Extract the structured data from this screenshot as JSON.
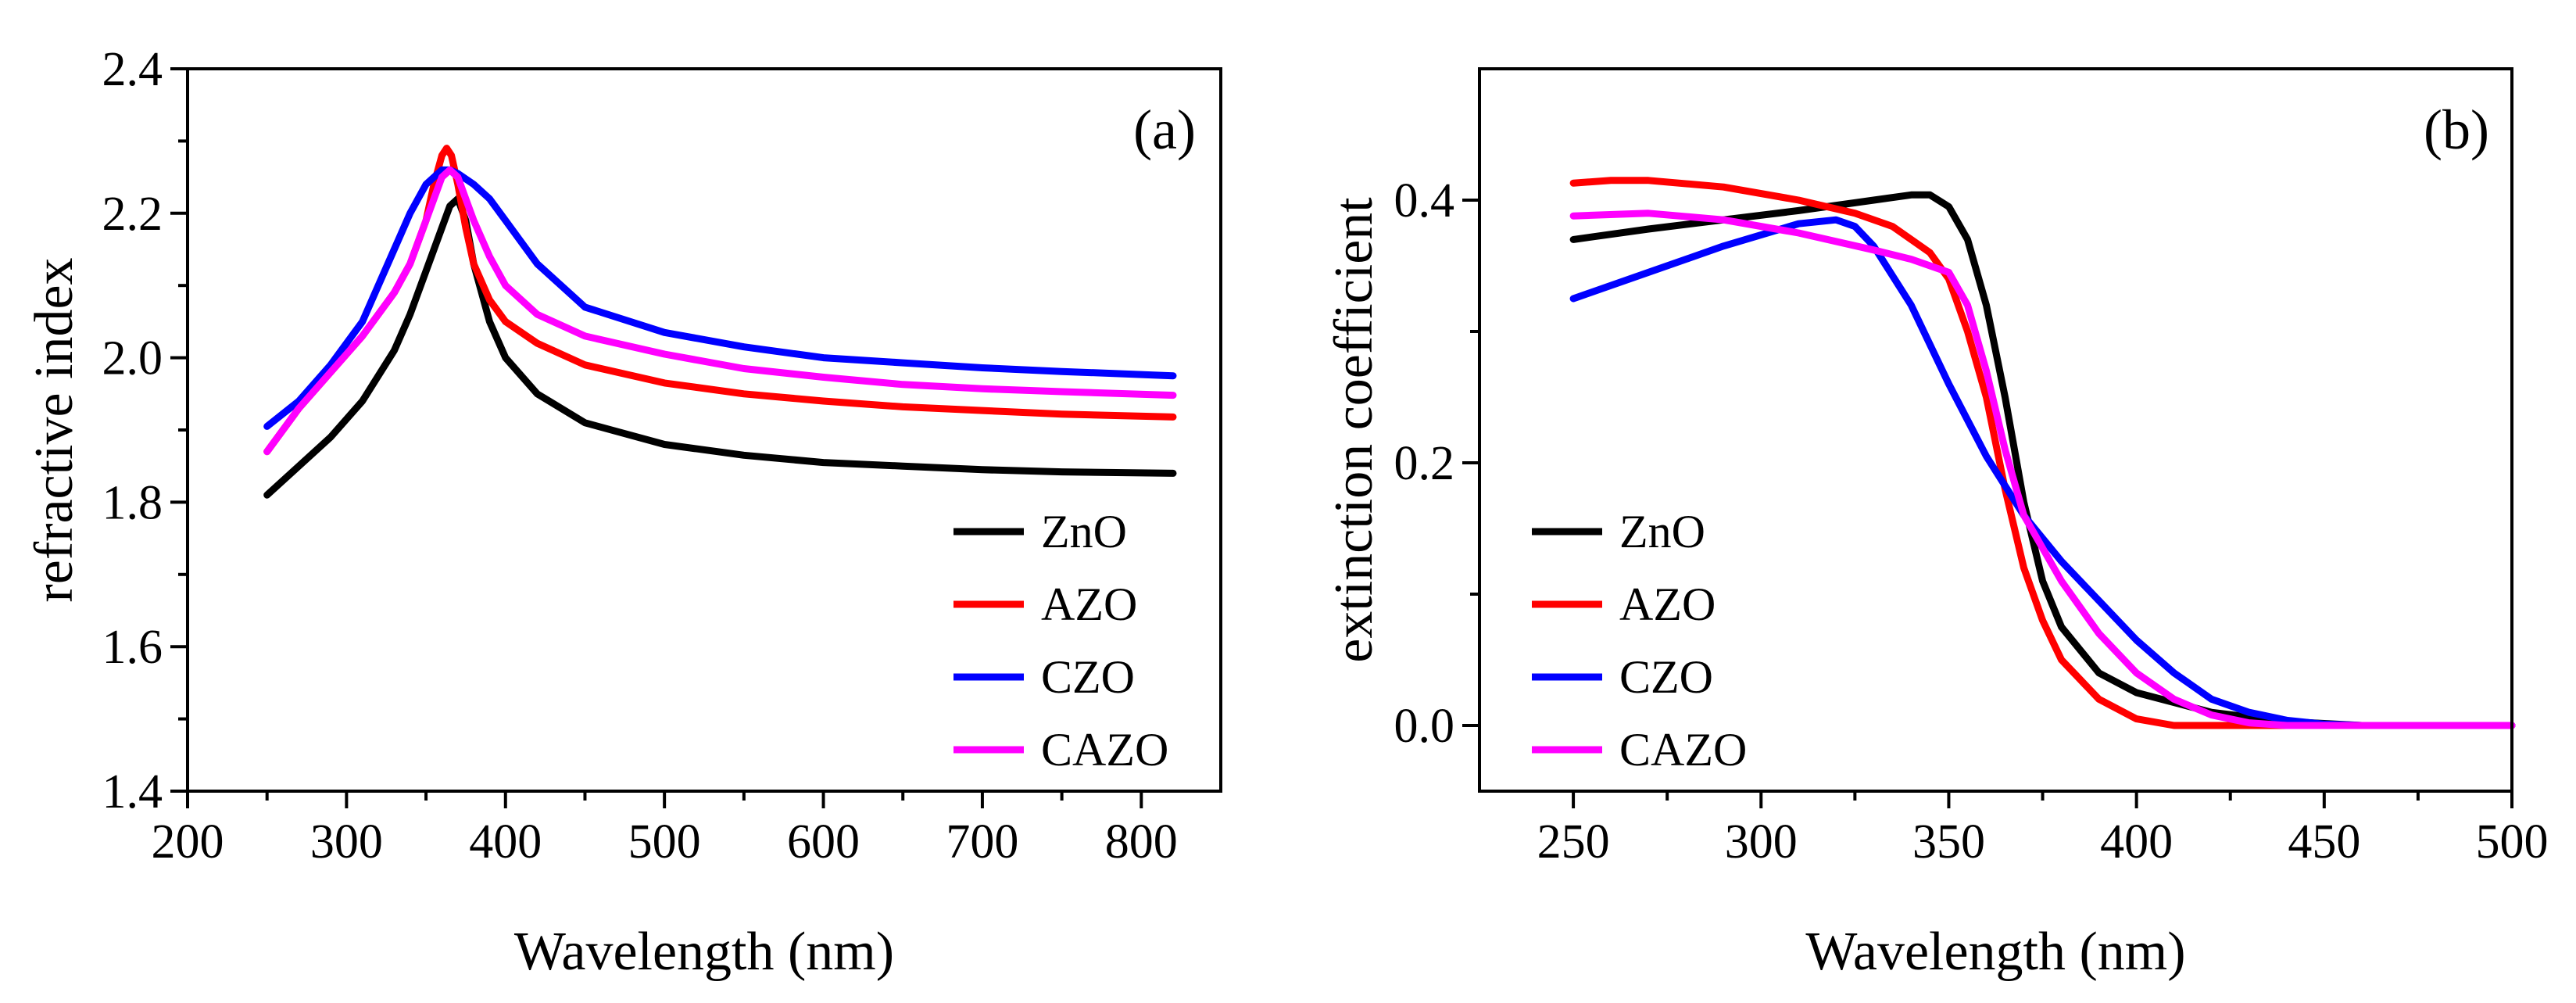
{
  "colors": {
    "ZnO": "#000000",
    "AZO": "#ff0000",
    "CZO": "#0000ff",
    "CAZO": "#ff00ff"
  },
  "chart_data": [
    {
      "type": "line",
      "panel_label": "(a)",
      "xlabel": "Wavelength (nm)",
      "ylabel": "refractive index",
      "xlim": [
        200,
        850
      ],
      "ylim": [
        1.4,
        2.4
      ],
      "xticks": [
        200,
        300,
        400,
        500,
        600,
        700,
        800
      ],
      "yticks": [
        1.4,
        1.6,
        1.8,
        2.0,
        2.2,
        2.4
      ],
      "xtick_labels": [
        "200",
        "300",
        "400",
        "500",
        "600",
        "700",
        "800"
      ],
      "ytick_labels": [
        "1.4",
        "1.6",
        "1.8",
        "2.0",
        "2.2",
        "2.4"
      ],
      "legend": [
        "ZnO",
        "AZO",
        "CZO",
        "CAZO"
      ],
      "legend_position": "bottom-right",
      "series": [
        {
          "name": "ZnO",
          "x": [
            250,
            270,
            290,
            310,
            330,
            340,
            350,
            360,
            365,
            370,
            375,
            380,
            390,
            400,
            420,
            450,
            500,
            550,
            600,
            650,
            700,
            750,
            820
          ],
          "y": [
            1.81,
            1.85,
            1.89,
            1.94,
            2.01,
            2.06,
            2.12,
            2.18,
            2.21,
            2.22,
            2.19,
            2.13,
            2.05,
            2.0,
            1.95,
            1.91,
            1.88,
            1.865,
            1.855,
            1.85,
            1.845,
            1.842,
            1.84
          ]
        },
        {
          "name": "AZO",
          "x": [
            250,
            270,
            290,
            310,
            330,
            340,
            350,
            355,
            360,
            363,
            366,
            370,
            375,
            380,
            390,
            400,
            420,
            450,
            500,
            550,
            600,
            650,
            700,
            750,
            820
          ],
          "y": [
            1.87,
            1.93,
            1.98,
            2.03,
            2.09,
            2.13,
            2.19,
            2.24,
            2.28,
            2.29,
            2.28,
            2.24,
            2.18,
            2.13,
            2.08,
            2.05,
            2.02,
            1.99,
            1.965,
            1.95,
            1.94,
            1.932,
            1.927,
            1.922,
            1.918
          ]
        },
        {
          "name": "CZO",
          "x": [
            250,
            270,
            290,
            310,
            330,
            340,
            350,
            360,
            365,
            370,
            380,
            390,
            400,
            420,
            450,
            500,
            550,
            600,
            650,
            700,
            750,
            820
          ],
          "y": [
            1.905,
            1.94,
            1.99,
            2.05,
            2.15,
            2.2,
            2.24,
            2.26,
            2.26,
            2.255,
            2.24,
            2.22,
            2.19,
            2.13,
            2.07,
            2.035,
            2.015,
            2.0,
            1.993,
            1.986,
            1.981,
            1.975
          ]
        },
        {
          "name": "CAZO",
          "x": [
            250,
            270,
            290,
            310,
            330,
            340,
            350,
            360,
            365,
            370,
            375,
            380,
            390,
            400,
            420,
            450,
            500,
            550,
            600,
            650,
            700,
            750,
            820
          ],
          "y": [
            1.87,
            1.93,
            1.98,
            2.03,
            2.09,
            2.13,
            2.19,
            2.25,
            2.26,
            2.25,
            2.22,
            2.19,
            2.14,
            2.1,
            2.06,
            2.03,
            2.005,
            1.985,
            1.973,
            1.963,
            1.957,
            1.953,
            1.948
          ]
        }
      ]
    },
    {
      "type": "line",
      "panel_label": "(b)",
      "xlabel": "Wavelength (nm)",
      "ylabel": "extinction coefficient",
      "xlim": [
        225,
        500
      ],
      "ylim": [
        -0.05,
        0.5
      ],
      "xticks": [
        250,
        300,
        350,
        400,
        450,
        500
      ],
      "yticks": [
        0.0,
        0.2,
        0.4
      ],
      "xtick_labels": [
        "250",
        "300",
        "350",
        "400",
        "450",
        "500"
      ],
      "ytick_labels": [
        "0.0",
        "0.2",
        "0.4"
      ],
      "legend": [
        "ZnO",
        "AZO",
        "CZO",
        "CAZO"
      ],
      "legend_position": "bottom-left",
      "series": [
        {
          "name": "ZnO",
          "x": [
            250,
            270,
            290,
            310,
            330,
            340,
            345,
            350,
            355,
            360,
            365,
            370,
            375,
            380,
            390,
            400,
            420,
            440,
            460,
            500
          ],
          "y": [
            0.37,
            0.378,
            0.385,
            0.392,
            0.4,
            0.404,
            0.404,
            0.395,
            0.37,
            0.32,
            0.25,
            0.17,
            0.11,
            0.075,
            0.04,
            0.025,
            0.01,
            0.003,
            0.0,
            0.0
          ]
        },
        {
          "name": "AZO",
          "x": [
            250,
            260,
            270,
            290,
            310,
            325,
            335,
            345,
            350,
            355,
            360,
            365,
            370,
            375,
            380,
            390,
            400,
            410,
            500
          ],
          "y": [
            0.413,
            0.415,
            0.415,
            0.41,
            0.4,
            0.39,
            0.38,
            0.36,
            0.34,
            0.3,
            0.25,
            0.18,
            0.12,
            0.08,
            0.05,
            0.02,
            0.005,
            0.0,
            0.0
          ]
        },
        {
          "name": "CZO",
          "x": [
            250,
            270,
            290,
            310,
            320,
            325,
            330,
            340,
            350,
            360,
            370,
            380,
            390,
            400,
            410,
            420,
            430,
            440,
            450,
            460,
            500
          ],
          "y": [
            0.325,
            0.345,
            0.365,
            0.382,
            0.385,
            0.38,
            0.365,
            0.32,
            0.26,
            0.205,
            0.16,
            0.125,
            0.095,
            0.065,
            0.04,
            0.02,
            0.01,
            0.004,
            0.001,
            0.0,
            0.0
          ]
        },
        {
          "name": "CAZO",
          "x": [
            250,
            270,
            290,
            310,
            330,
            340,
            350,
            355,
            360,
            365,
            370,
            380,
            390,
            400,
            410,
            420,
            430,
            440,
            450,
            500
          ],
          "y": [
            0.388,
            0.39,
            0.385,
            0.375,
            0.362,
            0.355,
            0.345,
            0.32,
            0.27,
            0.21,
            0.16,
            0.11,
            0.07,
            0.04,
            0.02,
            0.008,
            0.002,
            0.0,
            0.0,
            0.0
          ]
        }
      ]
    }
  ]
}
